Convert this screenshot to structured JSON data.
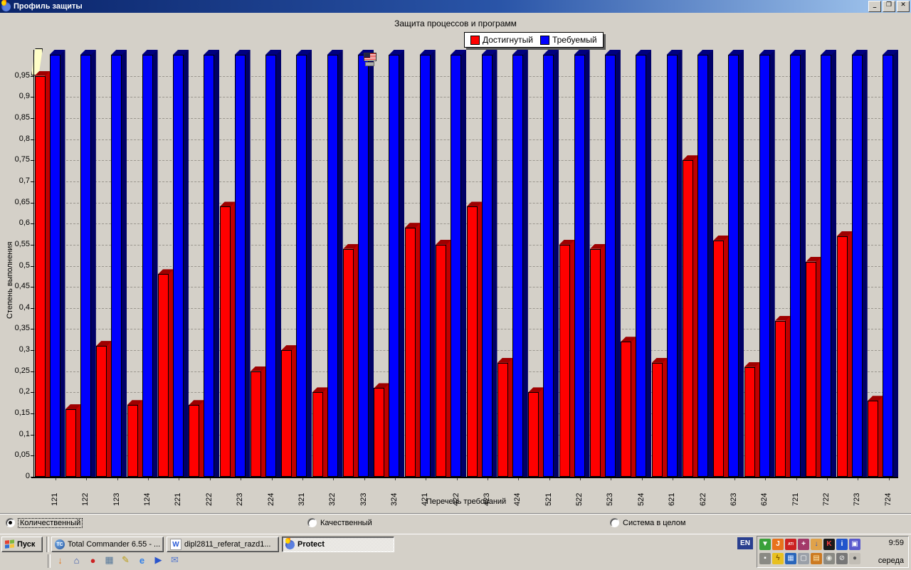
{
  "window": {
    "title": "Профиль защиты",
    "minimize_glyph": "_",
    "restore_glyph": "❐",
    "close_glyph": "✕"
  },
  "chart_data": {
    "type": "bar",
    "title": "Защита процессов и программ",
    "xlabel": "Перечень требований",
    "ylabel": "Степень выполнения",
    "ylim": [
      0,
      1.0
    ],
    "y_tick_step": 0.05,
    "y_tick_labels": [
      "0",
      "0,05",
      "0,1",
      "0,15",
      "0,2",
      "0,25",
      "0,3",
      "0,35",
      "0,4",
      "0,45",
      "0,5",
      "0,55",
      "0,6",
      "0,65",
      "0,7",
      "0,75",
      "0,8",
      "0,85",
      "0,9",
      "0,95"
    ],
    "grid": "dashed-horizontal",
    "legend_position": "top-center",
    "categories": [
      "121",
      "122",
      "123",
      "124",
      "221",
      "222",
      "223",
      "224",
      "321",
      "322",
      "323",
      "324",
      "421",
      "422",
      "423",
      "424",
      "521",
      "522",
      "523",
      "524",
      "621",
      "622",
      "623",
      "624",
      "721",
      "722",
      "723",
      "724"
    ],
    "series": [
      {
        "key": "achieved",
        "name": "Достигнутый",
        "color": "#ff0000",
        "color_top": "#9e0000",
        "color_side": "#c00000",
        "values": [
          0.95,
          0.16,
          0.31,
          0.17,
          0.48,
          0.17,
          0.64,
          0.25,
          0.3,
          0.2,
          0.54,
          0.21,
          0.59,
          0.55,
          0.64,
          0.27,
          0.2,
          0.55,
          0.54,
          0.32,
          0.27,
          0.75,
          0.56,
          0.26,
          0.37,
          0.51,
          0.57,
          0.18
        ]
      },
      {
        "key": "required",
        "name": "Требуемый",
        "color": "#0000fe",
        "color_top": "#000080",
        "color_side": "#000066",
        "values": [
          1,
          1,
          1,
          1,
          1,
          1,
          1,
          1,
          1,
          1,
          1,
          1,
          1,
          1,
          1,
          1,
          1,
          1,
          1,
          1,
          1,
          1,
          1,
          1,
          1,
          1,
          1,
          1
        ]
      }
    ]
  },
  "radios": [
    {
      "label": "Количественный",
      "checked": true
    },
    {
      "label": "Качественный",
      "checked": false
    },
    {
      "label": "Система в целом",
      "checked": false
    }
  ],
  "taskbar": {
    "start_label": "Пуск",
    "tasks": [
      {
        "label": "Total Commander 6.55 - ...",
        "icon": "total-commander-icon",
        "glyph": "TC",
        "active": false
      },
      {
        "label": "dipl2811_referat_razd1...",
        "icon": "word-document-icon",
        "glyph": "W",
        "active": false
      },
      {
        "label": "Protect",
        "icon": "torch-icon",
        "glyph": "",
        "active": true
      }
    ],
    "language_indicator": "EN",
    "clock": "9:59",
    "day": "середа",
    "tray_icons_row1": [
      {
        "name": "card-reader-icon",
        "glyph": "▼",
        "bg": "#3aa13a",
        "fg": "#fff"
      },
      {
        "name": "java-icon",
        "glyph": "J",
        "bg": "#e8721c",
        "fg": "#fff"
      },
      {
        "name": "ati-icon",
        "glyph": "ATI",
        "bg": "#cc2222",
        "fg": "#fff"
      },
      {
        "name": "antivirus-shield-icon",
        "glyph": "+",
        "bg": "#a33a6a",
        "fg": "#fff"
      },
      {
        "name": "user-update-icon",
        "glyph": "↓",
        "bg": "#e0a24a",
        "fg": "#1c4fd0"
      },
      {
        "name": "kaspersky-icon",
        "glyph": "K",
        "bg": "#1a1a1a",
        "fg": "#ff4040"
      },
      {
        "name": "info-icon",
        "glyph": "i",
        "bg": "#2255cc",
        "fg": "#fff"
      },
      {
        "name": "network-icon",
        "glyph": "▣",
        "bg": "#5a5acd",
        "fg": "#fff"
      }
    ],
    "tray_icons_row2": [
      {
        "name": "power-plug-icon",
        "glyph": "▪",
        "bg": "#8a8a84",
        "fg": "#fff"
      },
      {
        "name": "lightning-icon",
        "glyph": "ϟ",
        "bg": "#e8c020",
        "fg": "#7a5200"
      },
      {
        "name": "monitor-chart-icon",
        "glyph": "▦",
        "bg": "#2a66ba",
        "fg": "#cfe4ff"
      },
      {
        "name": "window-icon",
        "glyph": "▢",
        "bg": "#9aA0a8",
        "fg": "#fff"
      },
      {
        "name": "book-icon",
        "glyph": "▤",
        "bg": "#cc7a22",
        "fg": "#ffe9b0"
      },
      {
        "name": "speaker-icon",
        "glyph": "◉",
        "bg": "#8a8a84",
        "fg": "#e8e8e0"
      },
      {
        "name": "blocked-icon",
        "glyph": "⊘",
        "bg": "#777",
        "fg": "#ddd"
      },
      {
        "name": "mouse-icon",
        "glyph": "●",
        "bg": "#c2beb6",
        "fg": "#555"
      }
    ],
    "quick_launch": [
      {
        "name": "user-switch-icon",
        "glyph": "↓",
        "color": "#e07820"
      },
      {
        "name": "home-icon",
        "glyph": "⌂",
        "color": "#3355aa"
      },
      {
        "name": "opera-icon",
        "glyph": "●",
        "color": "#cc2222"
      },
      {
        "name": "tv-window-icon",
        "glyph": "▦",
        "color": "#557799"
      },
      {
        "name": "pen-icon",
        "glyph": "✎",
        "color": "#b89a10"
      },
      {
        "name": "internet-explorer-icon",
        "glyph": "e",
        "color": "#2f7fe8"
      },
      {
        "name": "media-player-icon",
        "glyph": "▶",
        "color": "#2a55cc"
      },
      {
        "name": "mail-icon",
        "glyph": "✉",
        "color": "#5577cc"
      }
    ]
  }
}
